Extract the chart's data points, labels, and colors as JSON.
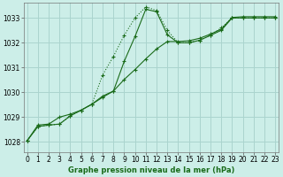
{
  "title": "Graphe pression niveau de la mer (hPa)",
  "bg_color": "#cceee8",
  "grid_color": "#aad4ce",
  "line_color": "#1a6b1a",
  "x_ticks": [
    0,
    1,
    2,
    3,
    4,
    5,
    6,
    7,
    8,
    9,
    10,
    11,
    12,
    13,
    14,
    15,
    16,
    17,
    18,
    19,
    20,
    21,
    22,
    23
  ],
  "y_ticks": [
    1028,
    1029,
    1030,
    1031,
    1032,
    1033
  ],
  "ylim": [
    1027.6,
    1033.6
  ],
  "xlim": [
    -0.3,
    23.3
  ],
  "series1_x": [
    0,
    1,
    2,
    3,
    4,
    5,
    6,
    7,
    8,
    9,
    10,
    11,
    12,
    13,
    14,
    15,
    16,
    17,
    18,
    19,
    20,
    21,
    22,
    23
  ],
  "series1_y": [
    1028.05,
    1028.62,
    1028.68,
    1028.72,
    1029.05,
    1029.28,
    1029.52,
    1029.85,
    1030.05,
    1031.25,
    1032.25,
    1033.35,
    1033.25,
    1032.32,
    1032.0,
    1032.0,
    1032.1,
    1032.3,
    1032.5,
    1033.0,
    1033.0,
    1033.0,
    1033.0,
    1033.0
  ],
  "series2_x": [
    0,
    1,
    2,
    3,
    4,
    5,
    6,
    7,
    8,
    9,
    10,
    11,
    12,
    13,
    14,
    15,
    16,
    17,
    18,
    19,
    20,
    21,
    22,
    23
  ],
  "series2_y": [
    1028.05,
    1028.62,
    1028.68,
    1028.72,
    1029.05,
    1029.28,
    1029.52,
    1030.7,
    1031.45,
    1032.3,
    1033.0,
    1033.45,
    1033.3,
    1032.5,
    1032.0,
    1032.0,
    1032.1,
    1032.3,
    1032.6,
    1033.0,
    1033.0,
    1033.0,
    1033.0,
    1033.0
  ],
  "series3_x": [
    0,
    1,
    2,
    3,
    4,
    5,
    6,
    7,
    8,
    9,
    10,
    11,
    12,
    13,
    14,
    15,
    16,
    17,
    18,
    19,
    20,
    21,
    22,
    23
  ],
  "series3_y": [
    1028.05,
    1028.68,
    1028.72,
    1029.0,
    1029.12,
    1029.28,
    1029.52,
    1029.8,
    1030.05,
    1030.52,
    1030.92,
    1031.35,
    1031.75,
    1032.05,
    1032.05,
    1032.08,
    1032.18,
    1032.35,
    1032.55,
    1033.02,
    1033.05,
    1033.05,
    1033.05,
    1033.05
  ],
  "tick_fontsize": 5.5,
  "label_fontsize": 6,
  "linewidth": 0.8,
  "markersize": 3.0
}
